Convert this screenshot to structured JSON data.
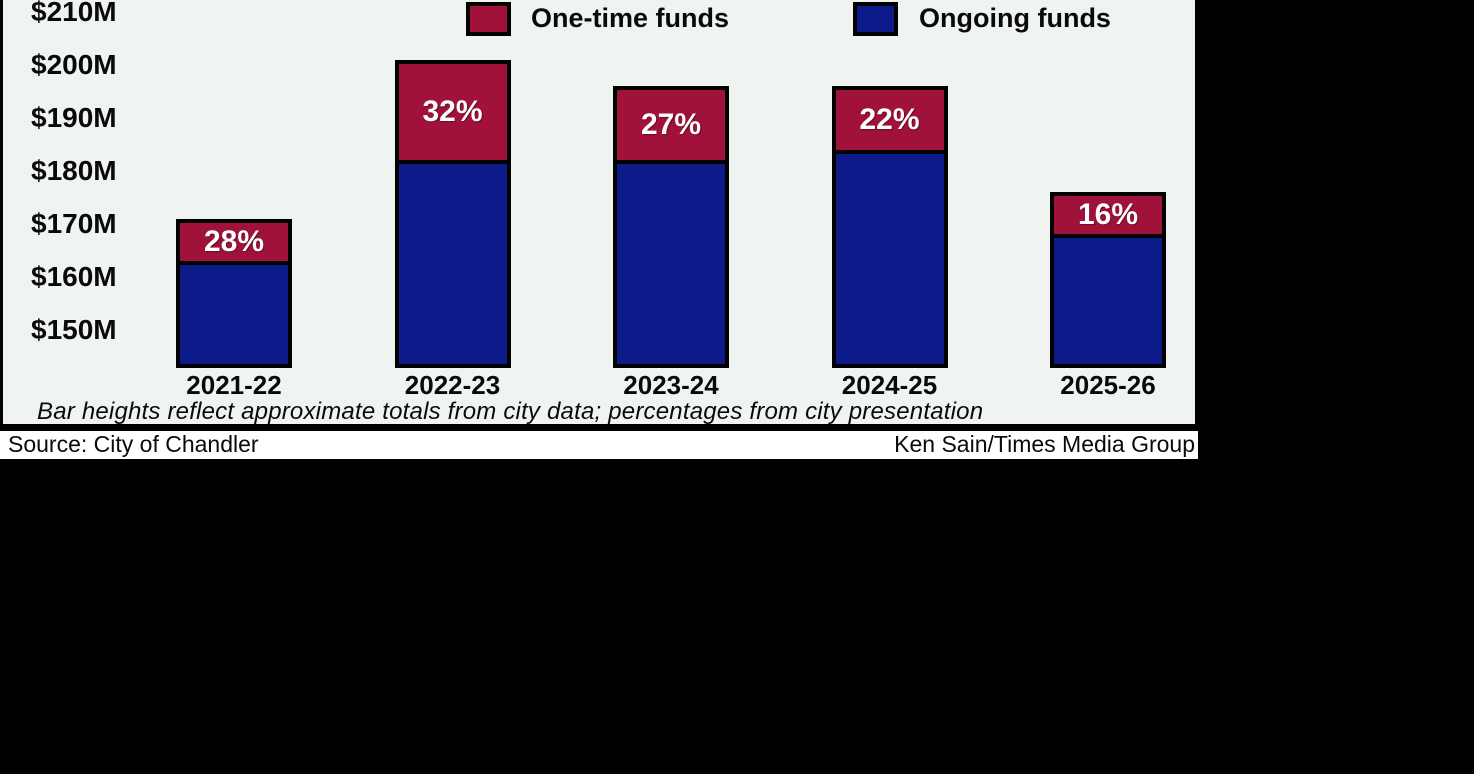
{
  "chart_data": {
    "type": "bar",
    "stacked": true,
    "categories": [
      "2021-22",
      "2022-23",
      "2023-24",
      "2024-25",
      "2025-26"
    ],
    "series": [
      {
        "name": "Ongoing funds",
        "color": "#0d1a8a",
        "values": [
          163,
          182,
          182,
          184,
          168
        ]
      },
      {
        "name": "One-time funds",
        "color": "#a1123b",
        "values": [
          8,
          19,
          14,
          12,
          8
        ]
      }
    ],
    "totals_estimated_M": [
      171,
      201,
      196,
      196,
      176
    ],
    "bar_labels": [
      "28%",
      "32%",
      "27%",
      "22%",
      "16%"
    ],
    "bar_label_series": "One-time funds",
    "y_axis": {
      "unit": "$M",
      "ticks": [
        {
          "label": "$210M",
          "value": 210
        },
        {
          "label": "$200M",
          "value": 200
        },
        {
          "label": "$190M",
          "value": 190
        },
        {
          "label": "$180M",
          "value": 180
        },
        {
          "label": "$170M",
          "value": 170
        },
        {
          "label": "$160M",
          "value": 160
        },
        {
          "label": "$150M",
          "value": 150
        }
      ],
      "visible_min": 143,
      "visible_max": 212
    },
    "legend_position": "top",
    "grid": false,
    "background": "#f0f4f1",
    "bar_outline_color": "#000000",
    "bar_label_color": "#ffffff",
    "footnote": "Bar heights reflect approximate totals from city data; percentages from city presentation"
  },
  "credits": {
    "source": "Source: City of Chandler",
    "byline": "Ken Sain/Times Media Group"
  }
}
